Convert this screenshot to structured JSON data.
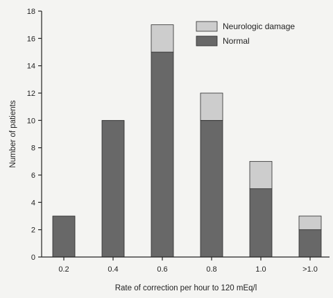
{
  "chart_data": {
    "type": "bar",
    "stacked": true,
    "categories": [
      "0.2",
      "0.4",
      "0.6",
      "0.8",
      "1.0",
      ">1.0"
    ],
    "series": [
      {
        "name": "Normal",
        "values": [
          3,
          10,
          15,
          10,
          5,
          2
        ],
        "color": "#686868"
      },
      {
        "name": "Neurologic damage",
        "values": [
          0,
          0,
          2,
          2,
          2,
          1
        ],
        "color": "#cdcdcd"
      }
    ],
    "title": "",
    "xlabel": "Rate of correction per hour to 120 mEq/l",
    "ylabel": "Number of patients",
    "ylim": [
      0,
      18
    ],
    "yticks": [
      0,
      2,
      4,
      6,
      8,
      10,
      12,
      14,
      16,
      18
    ],
    "grid": false,
    "legend_position": "top-right",
    "legend_order": [
      "Neurologic damage",
      "Normal"
    ]
  }
}
